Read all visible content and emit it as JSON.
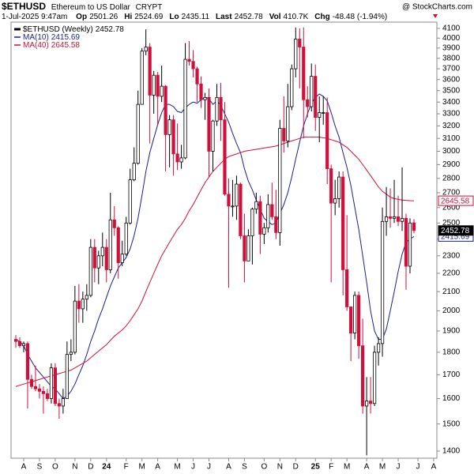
{
  "header": {
    "symbol": "$ETHUSD",
    "name": "Ethereum to US Dollar",
    "exchange": "CRYPT",
    "date": "1-Jul-2025 9:47am",
    "quote": [
      {
        "label": "Op",
        "value": "2501.26"
      },
      {
        "label": "Hi",
        "value": "2524.69"
      },
      {
        "label": "Lo",
        "value": "2435.11"
      },
      {
        "label": "Last",
        "value": "2452.78"
      },
      {
        "label": "Vol",
        "value": "410.7K"
      },
      {
        "label": "Chg",
        "value": "-48.48 (-1.94%)"
      }
    ],
    "credit": "@ StockCharts.com"
  },
  "chart_data": {
    "type": "candlestick",
    "name": "$ETHUSD (Weekly)",
    "log_scale": true,
    "grid": false,
    "up_color": "#ffffff",
    "down_color": "#d0103a",
    "outline_color": "#000000",
    "ylim": [
      1375,
      4166
    ],
    "yticks": [
      1400,
      1500,
      1600,
      1700,
      1800,
      1900,
      2000,
      2100,
      2200,
      2300,
      2400,
      2500,
      2600,
      2700,
      2800,
      2900,
      3000,
      3100,
      3200,
      3300,
      3400,
      3500,
      3600,
      3700,
      3800,
      3900,
      4000,
      4100
    ],
    "categories": [
      null,
      null,
      "A",
      null,
      null,
      null,
      "S",
      null,
      null,
      null,
      "O",
      null,
      null,
      null,
      null,
      "N",
      null,
      null,
      null,
      "D",
      null,
      null,
      null,
      "24",
      null,
      null,
      null,
      null,
      "F",
      null,
      null,
      null,
      "M",
      null,
      null,
      null,
      "A",
      null,
      null,
      null,
      null,
      "M",
      null,
      null,
      null,
      "J",
      null,
      null,
      null,
      "J",
      null,
      null,
      null,
      null,
      "A",
      null,
      null,
      null,
      "S",
      null,
      null,
      null,
      null,
      "O",
      null,
      null,
      null,
      "N",
      null,
      null,
      null,
      "D",
      null,
      null,
      null,
      null,
      "25",
      null,
      null,
      null,
      "F",
      null,
      null,
      null,
      "M",
      null,
      null,
      null,
      null,
      "A",
      null,
      null,
      null,
      "M",
      null,
      null,
      null,
      "J",
      null,
      null,
      null,
      null,
      "J",
      null,
      null,
      null,
      "A",
      null
    ],
    "open": [
      1860,
      1850,
      1830,
      1840,
      1680,
      1650,
      1640,
      1630,
      1620,
      1600,
      1730,
      1580,
      1570,
      1600,
      1790,
      1800,
      2050,
      2010,
      2060,
      2080,
      2350,
      2230,
      2300,
      2350,
      2220,
      2520,
      2470,
      2260,
      2310,
      2500,
      2790,
      2910,
      3380,
      3870,
      3910,
      3460,
      3640,
      3450,
      3540,
      3130,
      3250,
      2980,
      2920,
      2950,
      3790,
      3770,
      3700,
      3560,
      3420,
      3440,
      3000,
      3240,
      3440,
      3250,
      2690,
      2610,
      2610,
      2760,
      2420,
      2270,
      2420,
      2590,
      2640,
      2430,
      2470,
      2620,
      2540,
      2440,
      3180,
      3080,
      3360,
      3700,
      3990,
      3910,
      3420,
      3360,
      3630,
      3270,
      3310,
      3310,
      2870,
      2630,
      2660,
      2810,
      2220,
      2020,
      1890,
      2080,
      1830,
      1570,
      1590,
      1580,
      1800,
      1840,
      2510,
      2540,
      2530,
      2540,
      2510,
      2530,
      2240,
      2501.26,
      null,
      null,
      null,
      null,
      null,
      null
    ],
    "high": [
      1880,
      1870,
      1850,
      1850,
      1700,
      1740,
      1660,
      1650,
      1640,
      1750,
      1750,
      1600,
      1640,
      1850,
      1860,
      2130,
      2140,
      2100,
      2140,
      2400,
      2400,
      2330,
      2440,
      2400,
      2700,
      2610,
      2480,
      2390,
      2540,
      2870,
      3030,
      3500,
      3900,
      4090,
      3950,
      3680,
      3670,
      3730,
      3550,
      3290,
      3290,
      3220,
      3050,
      3950,
      3970,
      3880,
      3720,
      3630,
      3480,
      3520,
      3250,
      3560,
      3570,
      3400,
      2800,
      2790,
      2820,
      2770,
      2560,
      2460,
      2600,
      2700,
      2680,
      2500,
      2690,
      2770,
      2720,
      3250,
      3450,
      3560,
      3740,
      4110,
      4100,
      4110,
      3540,
      3750,
      3740,
      3450,
      3450,
      3440,
      2900,
      2790,
      2850,
      2850,
      2550,
      2020,
      2100,
      2100,
      1960,
      1690,
      1690,
      1830,
      1870,
      2600,
      2740,
      2730,
      2790,
      2680,
      2880,
      2560,
      2530,
      2524.69,
      null,
      null,
      null,
      null,
      null,
      null
    ],
    "low": [
      1820,
      1820,
      1800,
      1560,
      1640,
      1630,
      1600,
      1540,
      1590,
      1580,
      1570,
      1520,
      1540,
      1600,
      1760,
      1790,
      1940,
      1940,
      2000,
      2070,
      2150,
      2140,
      2240,
      2150,
      2200,
      2420,
      2170,
      2240,
      2300,
      2490,
      2780,
      2900,
      3380,
      3830,
      3060,
      3300,
      3200,
      3400,
      2850,
      2880,
      2820,
      2860,
      2870,
      2940,
      3730,
      3620,
      3400,
      3350,
      3250,
      2810,
      2850,
      3200,
      3080,
      2680,
      2120,
      2540,
      2520,
      2400,
      2150,
      2270,
      2250,
      2560,
      2310,
      2370,
      2440,
      2520,
      2400,
      2360,
      2990,
      3030,
      3330,
      3620,
      3520,
      3100,
      3270,
      3320,
      3160,
      3070,
      3210,
      2760,
      2150,
      2550,
      2600,
      2080,
      2000,
      1760,
      1860,
      1770,
      1540,
      1385,
      1540,
      1570,
      1740,
      1780,
      2420,
      2470,
      2500,
      2480,
      2450,
      2110,
      2200,
      2435.11,
      null,
      null,
      null,
      null,
      null,
      null
    ],
    "close": [
      1850,
      1830,
      1840,
      1680,
      1650,
      1640,
      1630,
      1620,
      1600,
      1730,
      1580,
      1570,
      1600,
      1790,
      1800,
      2050,
      2010,
      2060,
      2080,
      2350,
      2230,
      2300,
      2350,
      2220,
      2520,
      2470,
      2260,
      2310,
      2500,
      2790,
      2910,
      3380,
      3870,
      3910,
      3460,
      3640,
      3450,
      3540,
      3130,
      3250,
      2980,
      2920,
      2950,
      3790,
      3770,
      3700,
      3560,
      3420,
      3440,
      3000,
      3240,
      3440,
      3250,
      2690,
      2610,
      2610,
      2760,
      2420,
      2270,
      2420,
      2590,
      2640,
      2430,
      2470,
      2620,
      2540,
      2440,
      3180,
      3080,
      3360,
      3700,
      3990,
      3910,
      3420,
      3360,
      3630,
      3270,
      3310,
      3310,
      2870,
      2630,
      2660,
      2810,
      2220,
      2020,
      1890,
      2080,
      1830,
      1570,
      1590,
      1580,
      1800,
      1840,
      2510,
      2540,
      2530,
      2540,
      2510,
      2530,
      2240,
      2500,
      2452.78,
      null,
      null,
      null,
      null,
      null,
      null
    ],
    "series": [
      {
        "name": "MA(10)",
        "color": "#1a1f8c",
        "values": [
          1860,
          1850,
          1830,
          1790,
          1760,
          1730,
          1710,
          1690,
          1670,
          1650,
          1640,
          1620,
          1600,
          1610,
          1630,
          1660,
          1700,
          1740,
          1790,
          1850,
          1900,
          1960,
          2010,
          2070,
          2130,
          2180,
          2230,
          2260,
          2290,
          2340,
          2420,
          2530,
          2680,
          2850,
          2990,
          3100,
          3210,
          3310,
          3380,
          3380,
          3360,
          3320,
          3310,
          3350,
          3380,
          3400,
          3390,
          3420,
          3440,
          3430,
          3380,
          3410,
          3370,
          3300,
          3230,
          3140,
          3060,
          2990,
          2870,
          2780,
          2720,
          2650,
          2590,
          2530,
          2510,
          2490,
          2500,
          2560,
          2620,
          2700,
          2810,
          2940,
          3070,
          3200,
          3300,
          3390,
          3440,
          3470,
          3450,
          3410,
          3310,
          3200,
          3110,
          2990,
          2880,
          2750,
          2600,
          2460,
          2300,
          2150,
          2000,
          1900,
          1860,
          1860,
          1910,
          2000,
          2100,
          2210,
          2310,
          2380,
          2400,
          2415.69,
          null,
          null,
          null,
          null,
          null,
          null
        ]
      },
      {
        "name": "MA(40)",
        "color": "#d0103a",
        "values": [
          1650,
          1655,
          1660,
          1665,
          1670,
          1675,
          1680,
          1685,
          1690,
          1695,
          1700,
          1705,
          1710,
          1715,
          1720,
          1730,
          1740,
          1750,
          1760,
          1775,
          1790,
          1805,
          1820,
          1835,
          1855,
          1875,
          1890,
          1905,
          1925,
          1950,
          1980,
          2010,
          2050,
          2100,
          2150,
          2200,
          2250,
          2300,
          2340,
          2380,
          2420,
          2460,
          2490,
          2530,
          2580,
          2620,
          2670,
          2720,
          2770,
          2810,
          2850,
          2880,
          2910,
          2940,
          2960,
          2970,
          2980,
          2990,
          3000,
          3005,
          3010,
          3015,
          3020,
          3025,
          3030,
          3035,
          3040,
          3050,
          3060,
          3070,
          3080,
          3090,
          3100,
          3110,
          3110,
          3110,
          3110,
          3110,
          3105,
          3100,
          3090,
          3080,
          3070,
          3050,
          3030,
          3000,
          2970,
          2940,
          2900,
          2860,
          2820,
          2780,
          2740,
          2710,
          2690,
          2670,
          2660,
          2655,
          2650,
          2648,
          2646,
          2645.58,
          null,
          null,
          null,
          null,
          null,
          null
        ]
      }
    ]
  }
}
